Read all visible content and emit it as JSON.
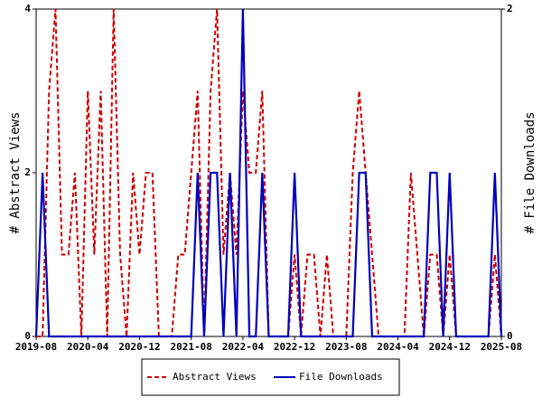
{
  "chart_data": {
    "type": "line",
    "x": [
      "2019-08",
      "2019-09",
      "2019-10",
      "2019-11",
      "2019-12",
      "2020-01",
      "2020-02",
      "2020-03",
      "2020-04",
      "2020-05",
      "2020-06",
      "2020-07",
      "2020-08",
      "2020-09",
      "2020-10",
      "2020-11",
      "2020-12",
      "2021-01",
      "2021-02",
      "2021-03",
      "2021-04",
      "2021-05",
      "2021-06",
      "2021-07",
      "2021-08",
      "2021-09",
      "2021-10",
      "2021-11",
      "2021-12",
      "2022-01",
      "2022-02",
      "2022-03",
      "2022-04",
      "2022-05",
      "2022-06",
      "2022-07",
      "2022-08",
      "2022-09",
      "2022-10",
      "2022-11",
      "2022-12",
      "2023-01",
      "2023-02",
      "2023-03",
      "2023-04",
      "2023-05",
      "2023-06",
      "2023-07",
      "2023-08",
      "2023-09",
      "2023-10",
      "2023-11",
      "2023-12",
      "2024-01",
      "2024-02",
      "2024-03",
      "2024-04",
      "2024-05",
      "2024-06",
      "2024-07",
      "2024-08",
      "2024-09",
      "2024-10",
      "2024-11",
      "2024-12",
      "2025-01",
      "2025-02",
      "2025-03",
      "2025-04",
      "2025-05",
      "2025-06",
      "2025-07",
      "2025-08"
    ],
    "xticks": [
      "2019-08",
      "2020-04",
      "2020-12",
      "2021-08",
      "2022-04",
      "2022-12",
      "2023-08",
      "2024-04",
      "2024-12",
      "2025-08"
    ],
    "y_label": "# Abstract Views",
    "y2_label": "# File Downloads",
    "ylim": [
      0,
      4
    ],
    "yticks": [
      0,
      2,
      4
    ],
    "y2lim": [
      0,
      2
    ],
    "y2ticks": [
      0,
      2
    ],
    "legend": "bottom",
    "series": [
      {
        "name": "Abstract Views",
        "color": "#cc0000",
        "dash": true,
        "values": [
          0,
          0,
          3,
          4,
          1,
          1,
          2,
          0,
          3,
          1,
          3,
          0,
          4,
          1,
          0,
          2,
          1,
          2,
          2,
          0,
          0,
          0,
          1,
          1,
          2,
          3,
          0,
          3,
          4,
          1,
          2,
          1,
          3,
          2,
          2,
          3,
          0,
          0,
          0,
          0,
          1,
          0,
          1,
          1,
          0,
          1,
          0,
          0,
          0,
          2,
          3,
          2,
          1,
          0,
          0,
          0,
          0,
          0,
          2,
          1,
          0,
          1,
          1,
          0,
          1,
          0,
          0,
          0,
          0,
          0,
          0,
          1,
          0
        ]
      },
      {
        "name": "File Downloads",
        "color": "#0000bb",
        "axis": "y2",
        "values": [
          0,
          1,
          0,
          0,
          0,
          0,
          0,
          0,
          0,
          0,
          0,
          0,
          0,
          0,
          0,
          0,
          0,
          0,
          0,
          0,
          0,
          0,
          0,
          0,
          0,
          1,
          0,
          1,
          1,
          0,
          1,
          0,
          2,
          0,
          0,
          1,
          0,
          0,
          0,
          0,
          1,
          0,
          0,
          0,
          0,
          0,
          0,
          0,
          0,
          0,
          1,
          1,
          0,
          0,
          0,
          0,
          0,
          0,
          0,
          0,
          0,
          1,
          1,
          0,
          1,
          0,
          0,
          0,
          0,
          0,
          0,
          1,
          0
        ]
      }
    ]
  }
}
